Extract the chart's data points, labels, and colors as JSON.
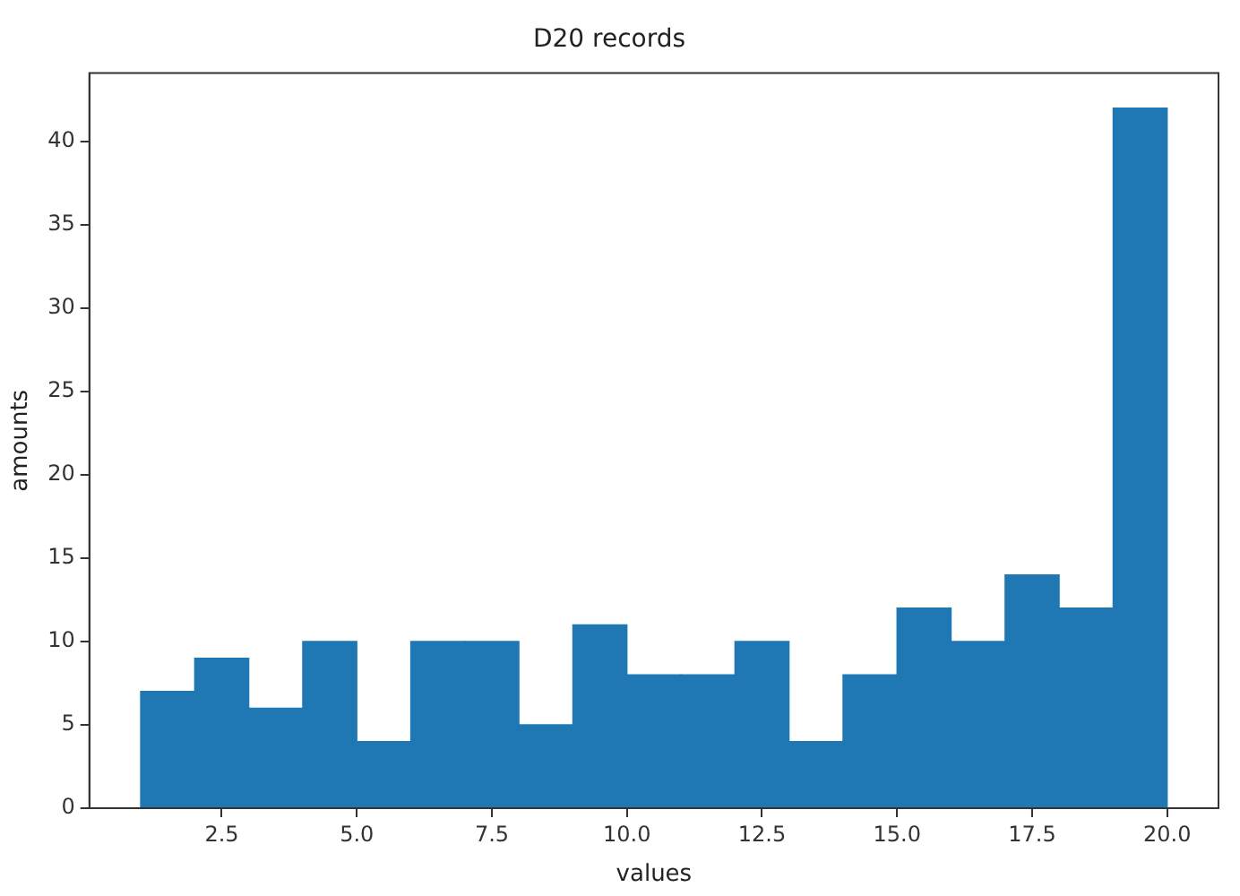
{
  "chart_data": {
    "type": "histogram",
    "title": "D20 records",
    "xlabel": "values",
    "ylabel": "amounts",
    "bins": [
      1,
      2,
      3,
      4,
      5,
      6,
      7,
      8,
      9,
      10,
      11,
      12,
      13,
      14,
      15,
      16,
      17,
      18,
      19,
      20
    ],
    "values": [
      7,
      9,
      6,
      10,
      4,
      10,
      10,
      5,
      11,
      8,
      8,
      10,
      4,
      8,
      12,
      10,
      14,
      12,
      42
    ],
    "color": "#1f77b4",
    "xlim": [
      0.05,
      20.95
    ],
    "xticks": [
      {
        "value": 2.5,
        "label": "2.5"
      },
      {
        "value": 5,
        "label": "5.0"
      },
      {
        "value": 7.5,
        "label": "7.5"
      },
      {
        "value": 10,
        "label": "10.0"
      },
      {
        "value": 12.5,
        "label": "12.5"
      },
      {
        "value": 15,
        "label": "15.0"
      },
      {
        "value": 17.5,
        "label": "17.5"
      },
      {
        "value": 20,
        "label": "20.0"
      }
    ],
    "ylim": [
      0,
      44.1
    ],
    "yticks": [
      0,
      5,
      10,
      15,
      20,
      25,
      30,
      35,
      40
    ],
    "grid": false,
    "legend": false
  }
}
